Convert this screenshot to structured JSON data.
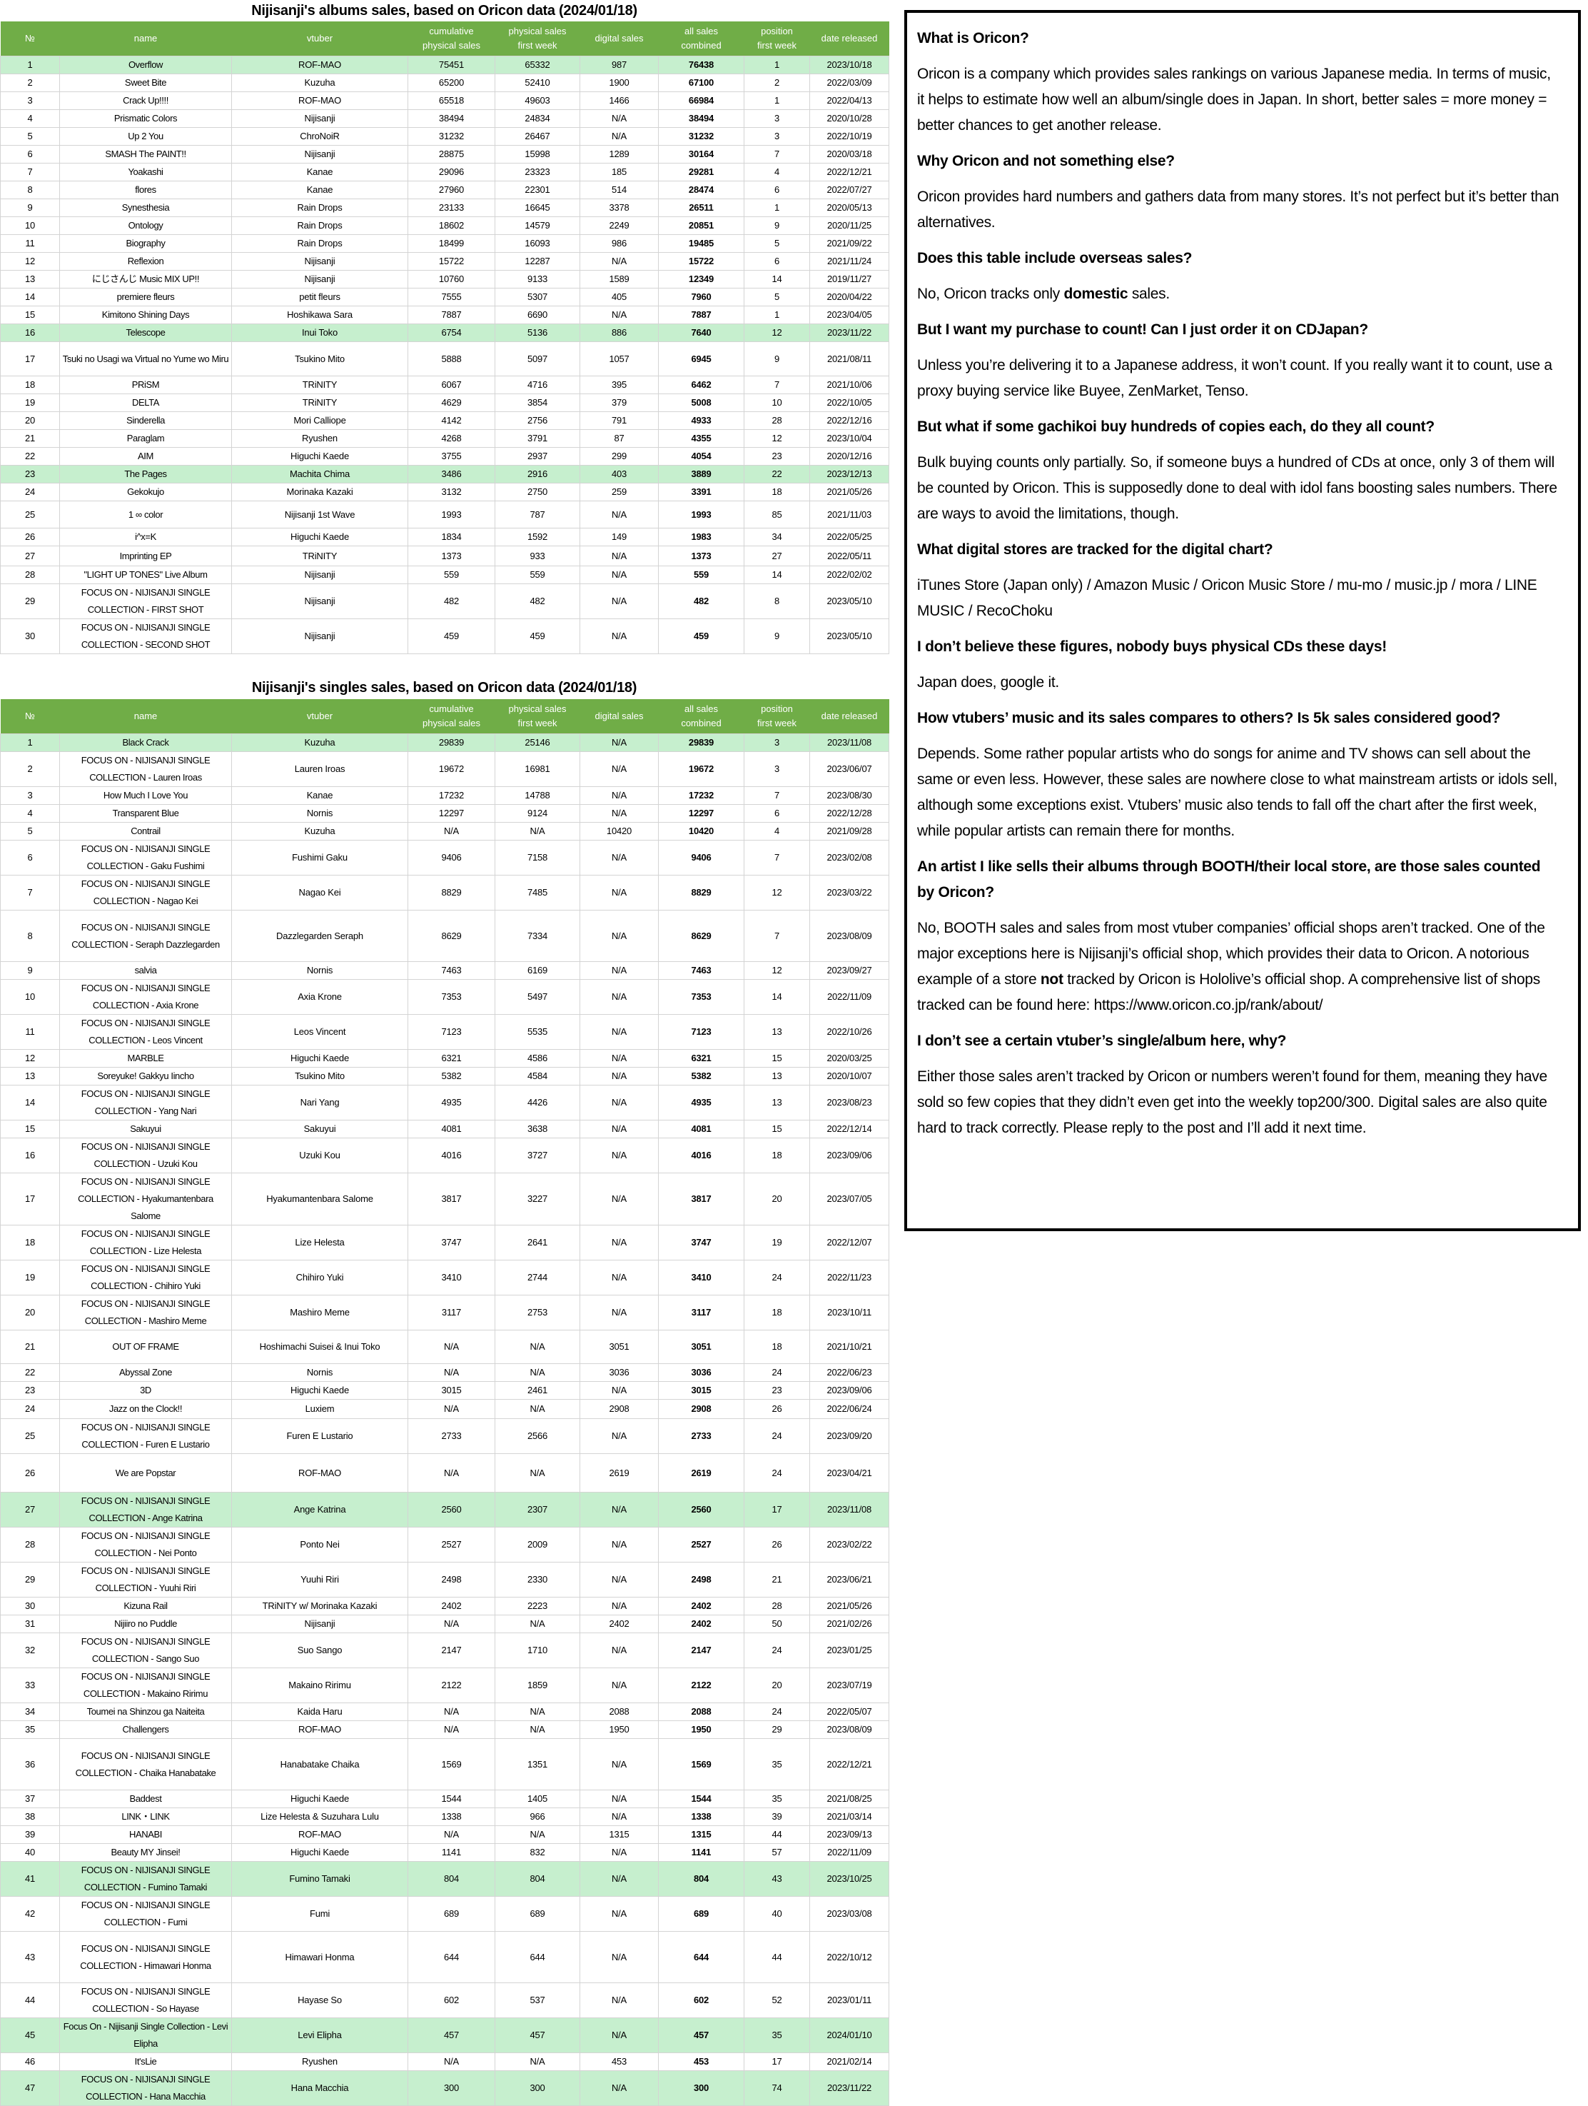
{
  "albums": {
    "title": "Nijisanji's albums sales, based on Oricon data (2024/01/18)",
    "columns": [
      [
        "№"
      ],
      [
        "name"
      ],
      [
        "vtuber"
      ],
      [
        "cumulative",
        "physical sales"
      ],
      [
        "physical sales",
        "first week"
      ],
      [
        "digital sales"
      ],
      [
        "all sales",
        "combined"
      ],
      [
        "position",
        "first week"
      ],
      [
        "date released"
      ]
    ],
    "highlighted_rows": [
      1,
      16,
      23
    ],
    "rows": [
      [
        "1",
        "Overflow",
        "ROF-MAO",
        "75451",
        "65332",
        "987",
        "76438",
        "1",
        "2023/10/18"
      ],
      [
        "2",
        "Sweet Bite",
        "Kuzuha",
        "65200",
        "52410",
        "1900",
        "67100",
        "2",
        "2022/03/09"
      ],
      [
        "3",
        "Crack Up!!!!",
        "ROF-MAO",
        "65518",
        "49603",
        "1466",
        "66984",
        "1",
        "2022/04/13"
      ],
      [
        "4",
        "Prismatic Colors",
        "Nijisanji",
        "38494",
        "24834",
        "N/A",
        "38494",
        "3",
        "2020/10/28"
      ],
      [
        "5",
        "Up 2 You",
        "ChroNoiR",
        "31232",
        "26467",
        "N/A",
        "31232",
        "3",
        "2022/10/19"
      ],
      [
        "6",
        "SMASH The PAINT!!",
        "Nijisanji",
        "28875",
        "15998",
        "1289",
        "30164",
        "7",
        "2020/03/18"
      ],
      [
        "7",
        "Yoakashi",
        "Kanae",
        "29096",
        "23323",
        "185",
        "29281",
        "4",
        "2022/12/21"
      ],
      [
        "8",
        "flores",
        "Kanae",
        "27960",
        "22301",
        "514",
        "28474",
        "6",
        "2022/07/27"
      ],
      [
        "9",
        "Synesthesia",
        "Rain Drops",
        "23133",
        "16645",
        "3378",
        "26511",
        "1",
        "2020/05/13"
      ],
      [
        "10",
        "Ontology",
        "Rain Drops",
        "18602",
        "14579",
        "2249",
        "20851",
        "9",
        "2020/11/25"
      ],
      [
        "11",
        "Biography",
        "Rain Drops",
        "18499",
        "16093",
        "986",
        "19485",
        "5",
        "2021/09/22"
      ],
      [
        "12",
        "Reflexion",
        "Nijisanji",
        "15722",
        "12287",
        "N/A",
        "15722",
        "6",
        "2021/11/24"
      ],
      [
        "13",
        "にじさんじ Music MIX UP!!",
        "Nijisanji",
        "10760",
        "9133",
        "1589",
        "12349",
        "14",
        "2019/11/27"
      ],
      [
        "14",
        "premiere fleurs",
        "petit fleurs",
        "7555",
        "5307",
        "405",
        "7960",
        "5",
        "2020/04/22"
      ],
      [
        "15",
        "Kimitono Shining Days",
        "Hoshikawa Sara",
        "7887",
        "6690",
        "N/A",
        "7887",
        "1",
        "2023/04/05"
      ],
      [
        "16",
        "Telescope",
        "Inui Toko",
        "6754",
        "5136",
        "886",
        "7640",
        "12",
        "2023/11/22"
      ],
      [
        "17",
        "Tsuki no Usagi wa Virtual no Yume wo Miru",
        "Tsukino Mito",
        "5888",
        "5097",
        "1057",
        "6945",
        "9",
        "2021/08/11"
      ],
      [
        "18",
        "PRiSM",
        "TRiNITY",
        "6067",
        "4716",
        "395",
        "6462",
        "7",
        "2021/10/06"
      ],
      [
        "19",
        "DELTA",
        "TRiNITY",
        "4629",
        "3854",
        "379",
        "5008",
        "10",
        "2022/10/05"
      ],
      [
        "20",
        "Sinderella",
        "Mori Calliope",
        "4142",
        "2756",
        "791",
        "4933",
        "28",
        "2022/12/16"
      ],
      [
        "21",
        "Paraglam",
        "Ryushen",
        "4268",
        "3791",
        "87",
        "4355",
        "12",
        "2023/10/04"
      ],
      [
        "22",
        "AIM",
        "Higuchi Kaede",
        "3755",
        "2937",
        "299",
        "4054",
        "23",
        "2020/12/16"
      ],
      [
        "23",
        "The Pages",
        "Machita Chima",
        "3486",
        "2916",
        "403",
        "3889",
        "22",
        "2023/12/13"
      ],
      [
        "24",
        "Gekokujo",
        "Morinaka Kazaki",
        "3132",
        "2750",
        "259",
        "3391",
        "18",
        "2021/05/26"
      ],
      [
        "25",
        "1 ∞ color",
        "Nijisanji 1st Wave",
        "1993",
        "787",
        "N/A",
        "1993",
        "85",
        "2021/11/03"
      ],
      [
        "26",
        "i^x=K",
        "Higuchi Kaede",
        "1834",
        "1592",
        "149",
        "1983",
        "34",
        "2022/05/25"
      ],
      [
        "27",
        "Imprinting EP",
        "TRiNITY",
        "1373",
        "933",
        "N/A",
        "1373",
        "27",
        "2022/05/11"
      ],
      [
        "28",
        "\"LIGHT UP TONES\" Live Album",
        "Nijisanji",
        "559",
        "559",
        "N/A",
        "559",
        "14",
        "2022/02/02"
      ],
      [
        "29",
        "FOCUS ON - NIJISANJI SINGLE COLLECTION - FIRST SHOT",
        "Nijisanji",
        "482",
        "482",
        "N/A",
        "482",
        "8",
        "2023/05/10"
      ],
      [
        "30",
        "FOCUS ON - NIJISANJI SINGLE COLLECTION - SECOND SHOT",
        "Nijisanji",
        "459",
        "459",
        "N/A",
        "459",
        "9",
        "2023/05/10"
      ]
    ]
  },
  "singles": {
    "title": "Nijisanji's singles sales, based on Oricon data (2024/01/18)",
    "columns": [
      [
        "№"
      ],
      [
        "name"
      ],
      [
        "vtuber"
      ],
      [
        "cumulative",
        "physical sales"
      ],
      [
        "physical sales",
        "first week"
      ],
      [
        "digital sales"
      ],
      [
        "all sales",
        "combined"
      ],
      [
        "position",
        "first week"
      ],
      [
        "date released"
      ]
    ],
    "highlighted_rows": [
      1,
      27,
      41,
      45,
      47
    ],
    "rows": [
      [
        "1",
        "Black Crack",
        "Kuzuha",
        "29839",
        "25146",
        "N/A",
        "29839",
        "3",
        "2023/11/08"
      ],
      [
        "2",
        "FOCUS ON - NIJISANJI SINGLE COLLECTION - Lauren Iroas",
        "Lauren Iroas",
        "19672",
        "16981",
        "N/A",
        "19672",
        "3",
        "2023/06/07"
      ],
      [
        "3",
        "How Much I Love You",
        "Kanae",
        "17232",
        "14788",
        "N/A",
        "17232",
        "7",
        "2023/08/30"
      ],
      [
        "4",
        "Transparent Blue",
        "Nornis",
        "12297",
        "9124",
        "N/A",
        "12297",
        "6",
        "2022/12/28"
      ],
      [
        "5",
        "Contrail",
        "Kuzuha",
        "N/A",
        "N/A",
        "10420",
        "10420",
        "4",
        "2021/09/28"
      ],
      [
        "6",
        "FOCUS ON - NIJISANJI SINGLE COLLECTION - Gaku Fushimi",
        "Fushimi Gaku",
        "9406",
        "7158",
        "N/A",
        "9406",
        "7",
        "2023/02/08"
      ],
      [
        "7",
        "FOCUS ON - NIJISANJI SINGLE COLLECTION - Nagao Kei",
        "Nagao Kei",
        "8829",
        "7485",
        "N/A",
        "8829",
        "12",
        "2023/03/22"
      ],
      [
        "8",
        "FOCUS ON - NIJISANJI SINGLE COLLECTION - Seraph Dazzlegarden",
        "Dazzlegarden Seraph",
        "8629",
        "7334",
        "N/A",
        "8629",
        "7",
        "2023/08/09"
      ],
      [
        "9",
        "salvia",
        "Nornis",
        "7463",
        "6169",
        "N/A",
        "7463",
        "12",
        "2023/09/27"
      ],
      [
        "10",
        "FOCUS ON - NIJISANJI SINGLE COLLECTION - Axia Krone",
        "Axia Krone",
        "7353",
        "5497",
        "N/A",
        "7353",
        "14",
        "2022/11/09"
      ],
      [
        "11",
        "FOCUS ON - NIJISANJI SINGLE COLLECTION - Leos Vincent",
        "Leos Vincent",
        "7123",
        "5535",
        "N/A",
        "7123",
        "13",
        "2022/10/26"
      ],
      [
        "12",
        "MARBLE",
        "Higuchi Kaede",
        "6321",
        "4586",
        "N/A",
        "6321",
        "15",
        "2020/03/25"
      ],
      [
        "13",
        "Soreyuke! Gakkyu Iincho",
        "Tsukino Mito",
        "5382",
        "4584",
        "N/A",
        "5382",
        "13",
        "2020/10/07"
      ],
      [
        "14",
        "FOCUS ON - NIJISANJI SINGLE COLLECTION - Yang Nari",
        "Nari Yang",
        "4935",
        "4426",
        "N/A",
        "4935",
        "13",
        "2023/08/23"
      ],
      [
        "15",
        "Sakuyui",
        "Sakuyui",
        "4081",
        "3638",
        "N/A",
        "4081",
        "15",
        "2022/12/14"
      ],
      [
        "16",
        "FOCUS ON - NIJISANJI SINGLE COLLECTION - Uzuki Kou",
        "Uzuki Kou",
        "4016",
        "3727",
        "N/A",
        "4016",
        "18",
        "2023/09/06"
      ],
      [
        "17",
        "FOCUS ON - NIJISANJI SINGLE COLLECTION - Hyakumantenbara Salome",
        "Hyakumantenbara Salome",
        "3817",
        "3227",
        "N/A",
        "3817",
        "20",
        "2023/07/05"
      ],
      [
        "18",
        "FOCUS ON - NIJISANJI SINGLE COLLECTION - Lize Helesta",
        "Lize Helesta",
        "3747",
        "2641",
        "N/A",
        "3747",
        "19",
        "2022/12/07"
      ],
      [
        "19",
        "FOCUS ON - NIJISANJI SINGLE COLLECTION - Chihiro Yuki",
        "Chihiro Yuki",
        "3410",
        "2744",
        "N/A",
        "3410",
        "24",
        "2022/11/23"
      ],
      [
        "20",
        "FOCUS ON - NIJISANJI SINGLE COLLECTION - Mashiro Meme",
        "Mashiro Meme",
        "3117",
        "2753",
        "N/A",
        "3117",
        "18",
        "2023/10/11"
      ],
      [
        "21",
        "OUT OF FRAME",
        "Hoshimachi Suisei & Inui Toko",
        "N/A",
        "N/A",
        "3051",
        "3051",
        "18",
        "2021/10/21"
      ],
      [
        "22",
        "Abyssal Zone",
        "Nornis",
        "N/A",
        "N/A",
        "3036",
        "3036",
        "24",
        "2022/06/23"
      ],
      [
        "23",
        "3D",
        "Higuchi Kaede",
        "3015",
        "2461",
        "N/A",
        "3015",
        "23",
        "2023/09/06"
      ],
      [
        "24",
        "Jazz on the Clock!!",
        "Luxiem",
        "N/A",
        "N/A",
        "2908",
        "2908",
        "26",
        "2022/06/24"
      ],
      [
        "25",
        "FOCUS ON - NIJISANJI SINGLE COLLECTION - Furen E Lustario",
        "Furen E Lustario",
        "2733",
        "2566",
        "N/A",
        "2733",
        "24",
        "2023/09/20"
      ],
      [
        "26",
        "We are Popstar",
        "ROF-MAO",
        "N/A",
        "N/A",
        "2619",
        "2619",
        "24",
        "2023/04/21"
      ],
      [
        "27",
        "FOCUS ON - NIJISANJI SINGLE COLLECTION - Ange Katrina",
        "Ange Katrina",
        "2560",
        "2307",
        "N/A",
        "2560",
        "17",
        "2023/11/08"
      ],
      [
        "28",
        "FOCUS ON - NIJISANJI SINGLE COLLECTION - Nei Ponto",
        "Ponto Nei",
        "2527",
        "2009",
        "N/A",
        "2527",
        "26",
        "2023/02/22"
      ],
      [
        "29",
        "FOCUS ON - NIJISANJI SINGLE COLLECTION - Yuuhi Riri",
        "Yuuhi Riri",
        "2498",
        "2330",
        "N/A",
        "2498",
        "21",
        "2023/06/21"
      ],
      [
        "30",
        "Kizuna Rail",
        "TRiNITY w/ Morinaka Kazaki",
        "2402",
        "2223",
        "N/A",
        "2402",
        "28",
        "2021/05/26"
      ],
      [
        "31",
        "Nijiiro no Puddle",
        "Nijisanji",
        "N/A",
        "N/A",
        "2402",
        "2402",
        "50",
        "2021/02/26"
      ],
      [
        "32",
        "FOCUS ON - NIJISANJI SINGLE COLLECTION - Sango Suo",
        "Suo Sango",
        "2147",
        "1710",
        "N/A",
        "2147",
        "24",
        "2023/01/25"
      ],
      [
        "33",
        "FOCUS ON - NIJISANJI SINGLE COLLECTION - Makaino Ririmu",
        "Makaino Ririmu",
        "2122",
        "1859",
        "N/A",
        "2122",
        "20",
        "2023/07/19"
      ],
      [
        "34",
        "Toumei na Shinzou ga Naiteita",
        "Kaida Haru",
        "N/A",
        "N/A",
        "2088",
        "2088",
        "24",
        "2022/05/07"
      ],
      [
        "35",
        "Challengers",
        "ROF-MAO",
        "N/A",
        "N/A",
        "1950",
        "1950",
        "29",
        "2023/08/09"
      ],
      [
        "36",
        "FOCUS ON - NIJISANJI SINGLE COLLECTION - Chaika Hanabatake",
        "Hanabatake Chaika",
        "1569",
        "1351",
        "N/A",
        "1569",
        "35",
        "2022/12/21"
      ],
      [
        "37",
        "Baddest",
        "Higuchi Kaede",
        "1544",
        "1405",
        "N/A",
        "1544",
        "35",
        "2021/08/25"
      ],
      [
        "38",
        "LINK・LINK",
        "Lize Helesta & Suzuhara Lulu",
        "1338",
        "966",
        "N/A",
        "1338",
        "39",
        "2021/03/14"
      ],
      [
        "39",
        "HANABI",
        "ROF-MAO",
        "N/A",
        "N/A",
        "1315",
        "1315",
        "44",
        "2023/09/13"
      ],
      [
        "40",
        "Beauty MY Jinsei!",
        "Higuchi Kaede",
        "1141",
        "832",
        "N/A",
        "1141",
        "57",
        "2022/11/09"
      ],
      [
        "41",
        "FOCUS ON - NIJISANJI SINGLE COLLECTION - Fumino Tamaki",
        "Fumino Tamaki",
        "804",
        "804",
        "N/A",
        "804",
        "43",
        "2023/10/25"
      ],
      [
        "42",
        "FOCUS ON - NIJISANJI SINGLE COLLECTION - Fumi",
        "Fumi",
        "689",
        "689",
        "N/A",
        "689",
        "40",
        "2023/03/08"
      ],
      [
        "43",
        "FOCUS ON - NIJISANJI SINGLE COLLECTION - Himawari Honma",
        "Himawari Honma",
        "644",
        "644",
        "N/A",
        "644",
        "44",
        "2022/10/12"
      ],
      [
        "44",
        "FOCUS ON - NIJISANJI SINGLE COLLECTION - So Hayase",
        "Hayase So",
        "602",
        "537",
        "N/A",
        "602",
        "52",
        "2023/01/11"
      ],
      [
        "45",
        "Focus On - Nijisanji Single Collection - Levi Elipha",
        "Levi Elipha",
        "457",
        "457",
        "N/A",
        "457",
        "35",
        "2024/01/10"
      ],
      [
        "46",
        "It'sLie",
        "Ryushen",
        "N/A",
        "N/A",
        "453",
        "453",
        "17",
        "2021/02/14"
      ],
      [
        "47",
        "FOCUS ON - NIJISANJI SINGLE COLLECTION - Hana Macchia",
        "Hana Macchia",
        "300",
        "300",
        "N/A",
        "300",
        "74",
        "2023/11/22"
      ]
    ]
  },
  "faq": [
    {
      "q": "What is Oricon?",
      "a": [
        {
          "text": "Oricon is a company which provides sales rankings on various Japanese media. In terms of music, it helps to estimate how well an album/single does in Japan. In short, better sales = more money = better chances to get another release."
        }
      ]
    },
    {
      "q": "Why Oricon and not something else?",
      "a": [
        {
          "text": "Oricon provides hard numbers and gathers data from many stores. It’s not perfect but it’s better than alternatives."
        }
      ]
    },
    {
      "q": "Does this table include overseas sales?",
      "a": [
        {
          "text": "No, Oricon tracks only "
        },
        {
          "text": "domestic",
          "bold": true
        },
        {
          "text": " sales."
        }
      ]
    },
    {
      "q": "But I want my purchase to count! Can I just order it on CDJapan?",
      "a": [
        {
          "text": "Unless you’re delivering it to a Japanese address, it won’t count. If you really want it to count, use a proxy buying service like Buyee, ZenMarket, Tenso."
        }
      ]
    },
    {
      "q": "But what if some gachikoi buy hundreds of copies each, do they all count?",
      "a": [
        {
          "text": "Bulk buying counts only partially. So, if someone buys a hundred of CDs at once, only 3 of them will be counted by Oricon. This is supposedly done to deal with idol fans boosting sales numbers. There are ways to avoid the limitations, though."
        }
      ]
    },
    {
      "q": "What digital stores are tracked for the digital chart?",
      "a": [
        {
          "text": "iTunes Store (Japan only) / Amazon Music / Oricon Music Store / mu-mo / music.jp / mora / LINE MUSIC / RecoChoku"
        }
      ]
    },
    {
      "q": "I don’t believe these figures, nobody buys physical CDs these days!",
      "a": [
        {
          "text": "Japan does, google it."
        }
      ]
    },
    {
      "q": "How vtubers’ music and its sales compares to others? Is 5k sales considered good?",
      "a": [
        {
          "text": "Depends. Some rather popular artists who do songs for anime and TV shows can sell about the same or even less. However, these sales are nowhere close to what mainstream artists or idols sell, although some exceptions exist. Vtubers’ music also tends to fall off the chart after the first week, while popular artists can remain there for months."
        }
      ]
    },
    {
      "q": "An artist I like sells their albums through BOOTH/their local store, are those sales counted by Oricon?",
      "a": [
        {
          "text": "No, BOOTH sales and sales from most vtuber companies’ official shops aren’t tracked. One of the major exceptions here is Nijisanji’s official shop, which provides their data to Oricon. A notorious example of a store "
        },
        {
          "text": "not",
          "bold": true
        },
        {
          "text": " tracked by Oricon is Hololive’s official shop. A comprehensive list of shops tracked can be found here: https://www.oricon.co.jp/rank/about/"
        }
      ]
    },
    {
      "q": "I don’t see a certain vtuber’s single/album here, why?",
      "a": [
        {
          "text": "Either those sales aren’t tracked by Oricon or numbers weren’t found for them, meaning they have sold so few copies that they didn’t even get into the weekly top200/300. Digital sales are also quite hard to track correctly. Please reply to the post and I’ll add it next time."
        }
      ]
    }
  ],
  "colors": {
    "header_bg": "#70ad47",
    "header_text": "#ffffff",
    "highlight_row": "#c6efce",
    "grid": "#d4d4d4"
  }
}
